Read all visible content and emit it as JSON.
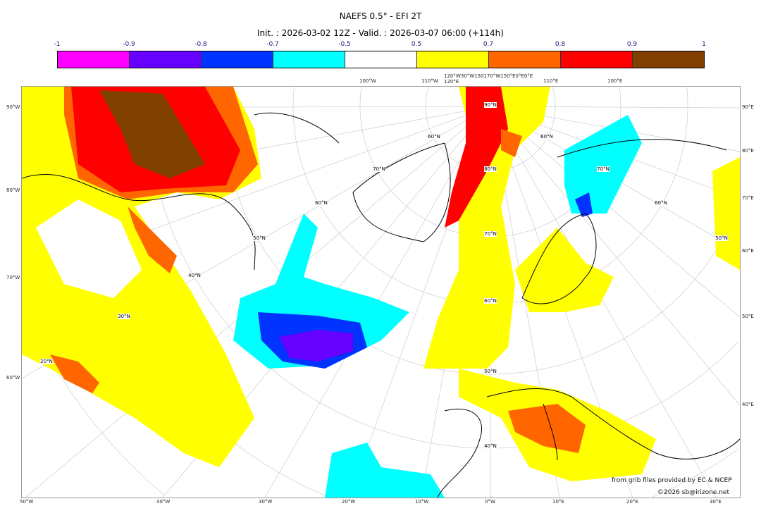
{
  "title": "NAEFS 0.5° - EFI 2T",
  "subtitle": "Init. : 2026-03-02 12Z - Valid. : 2026-03-07 06:00 (+114h)",
  "colorbar": {
    "ticks": [
      "-1",
      "-0.9",
      "-0.8",
      "-0.7",
      "-0.5",
      "0.5",
      "0.7",
      "0.8",
      "0.9",
      "1"
    ],
    "colors": [
      "#ff00ff",
      "#6600ff",
      "#0033ff",
      "#00ffff",
      "#ffffff",
      "#ffff00",
      "#ff6600",
      "#ff0000",
      "#804000"
    ]
  },
  "map": {
    "top_labels": [
      "100°W",
      "110°W",
      "120°W30°W150170°W150°E0°E0°E120°E",
      "110°E",
      "100°E"
    ],
    "bottom_labels": [
      "50°W",
      "40°W",
      "30°W",
      "20°W",
      "10°W",
      "0°W",
      "10°E",
      "20°E",
      "30°E"
    ],
    "left_labels": [
      "90°W",
      "80°W",
      "70°W",
      "60°W"
    ],
    "right_labels": [
      "90°E",
      "80°E",
      "70°E",
      "60°E",
      "50°E",
      "40°E"
    ],
    "lat_labels": [
      "90°N",
      "80°N",
      "70°N",
      "60°N",
      "50°N",
      "40°N",
      "60°N",
      "70°N",
      "60°N",
      "50°N",
      "40°N",
      "30°N",
      "20°N",
      "60°N",
      "70°N",
      "60°N",
      "50°N"
    ]
  },
  "credits": {
    "source": "from grib files provided by EC & NCEP",
    "copyright": "©2026 sb@irizone.net"
  }
}
